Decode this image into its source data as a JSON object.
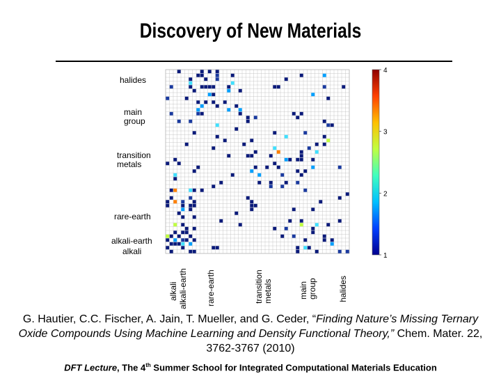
{
  "title": "Discovery of New Materials",
  "figure": {
    "row_groups": [
      "halides",
      "main group",
      "transition metals",
      "rare-earth",
      "alkali-earth",
      "alkali"
    ],
    "col_groups": [
      "alkali",
      "alkali-earth",
      "rare-earth",
      "transition metals",
      "main group",
      "halides"
    ],
    "colorbar_ticks": [
      "4",
      "3",
      "2",
      "1"
    ],
    "colorbar_colors": [
      "#00008f",
      "#0040ff",
      "#00c0ff",
      "#40ffbf",
      "#c0ff40",
      "#ffc000",
      "#ff4000",
      "#8f0000"
    ]
  },
  "citation": {
    "prefix": "G. Hautier, C.C. Fischer, A. Jain, T. Mueller, and G. Ceder, “",
    "article_title": "Finding Nature’s Missing Ternary Oxide Compounds Using Machine Learning and Density Functional Theory,”",
    "suffix": " Chem. Mater. 22, 3762-3767 (2010)"
  },
  "footer": {
    "lecture": "DFT Lecture",
    "rest_a": ", The 4",
    "sup": "th",
    "rest_b": " Summer School for Integrated Computational Materials Education"
  }
}
